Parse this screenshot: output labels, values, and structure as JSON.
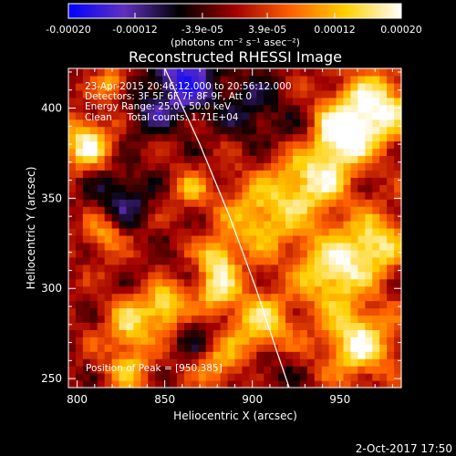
{
  "chart_data": {
    "type": "heatmap",
    "title": "Reconstructed RHESSI Image",
    "xlabel": "Heliocentric X (arcsec)",
    "ylabel": "Heliocentric Y (arcsec)",
    "xlim": [
      795,
      985
    ],
    "ylim": [
      245,
      422
    ],
    "x_ticks": [
      800,
      850,
      900,
      950
    ],
    "y_ticks": [
      250,
      300,
      350,
      400
    ],
    "colorbar": {
      "min": -0.0002,
      "max": 0.0002,
      "tick_values": [
        -0.0002,
        -0.00012,
        -3.9e-05,
        3.9e-05,
        0.00012,
        0.0002
      ],
      "tick_labels": [
        "-0.00020",
        "-0.00012",
        "-3.9e-05",
        "3.9e-05",
        "0.00012",
        "0.00020"
      ],
      "units_label": "(photons cm⁻² s⁻¹ asec⁻²)",
      "colormap": [
        "#0000ff",
        "#6030c0",
        "#000000",
        "#a00000",
        "#ff6000",
        "#ffd000",
        "#ffffff"
      ]
    },
    "annotations": [
      "23-Apr-2015 20:46:12.000 to 20:56:12.000",
      "Detectors: 3F 5F 6F 7F 8F 9F, Att 0",
      "Energy Range: 25.0 - 50.0 keV",
      "Clean     Total counts: 1.71E+04"
    ],
    "peak_label": "Position of Peak = [950,385]",
    "peak_position": [
      950,
      385
    ],
    "limb_curve": [
      [
        850,
        422
      ],
      [
        870,
        380
      ],
      [
        887,
        340
      ],
      [
        902,
        300
      ],
      [
        914,
        265
      ],
      [
        921,
        245
      ]
    ],
    "blobs": [
      {
        "x": 970,
        "y": 400,
        "v": 1.0,
        "s": 14
      },
      {
        "x": 950,
        "y": 385,
        "v": 1.0,
        "s": 12
      },
      {
        "x": 935,
        "y": 360,
        "v": 0.8,
        "s": 14
      },
      {
        "x": 905,
        "y": 340,
        "v": 0.7,
        "s": 16
      },
      {
        "x": 945,
        "y": 310,
        "v": 0.9,
        "s": 14
      },
      {
        "x": 970,
        "y": 325,
        "v": 0.8,
        "s": 12
      },
      {
        "x": 960,
        "y": 270,
        "v": 0.9,
        "s": 14
      },
      {
        "x": 905,
        "y": 280,
        "v": 0.8,
        "s": 12
      },
      {
        "x": 880,
        "y": 300,
        "v": 0.8,
        "s": 9
      },
      {
        "x": 830,
        "y": 280,
        "v": 0.7,
        "s": 10
      },
      {
        "x": 850,
        "y": 290,
        "v": 0.9,
        "s": 8
      },
      {
        "x": 805,
        "y": 380,
        "v": 0.9,
        "s": 10
      },
      {
        "x": 880,
        "y": 318,
        "v": 0.7,
        "s": 7
      },
      {
        "x": 815,
        "y": 330,
        "v": 0.6,
        "s": 8
      },
      {
        "x": 880,
        "y": 260,
        "v": 0.6,
        "s": 10
      },
      {
        "x": 830,
        "y": 255,
        "v": 0.5,
        "s": 10
      },
      {
        "x": 865,
        "y": 355,
        "v": 0.5,
        "s": 7
      },
      {
        "x": 820,
        "y": 415,
        "v": 0.6,
        "s": 6
      },
      {
        "x": 860,
        "y": 415,
        "v": -0.8,
        "s": 14
      },
      {
        "x": 900,
        "y": 400,
        "v": -0.4,
        "s": 14
      },
      {
        "x": 825,
        "y": 350,
        "v": -0.5,
        "s": 12
      },
      {
        "x": 840,
        "y": 395,
        "v": -0.4,
        "s": 8
      },
      {
        "x": 870,
        "y": 270,
        "v": -0.4,
        "s": 9
      },
      {
        "x": 930,
        "y": 385,
        "v": -0.3,
        "s": 8
      },
      {
        "x": 910,
        "y": 255,
        "v": -0.3,
        "s": 10
      }
    ]
  },
  "footer": {
    "timestamp": "2-Oct-2017 17:50"
  }
}
